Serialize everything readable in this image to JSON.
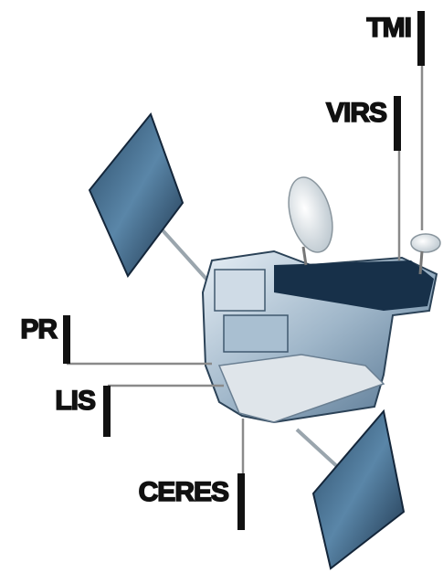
{
  "instruments": [
    {
      "label": "TMI"
    },
    {
      "label": "VIRS"
    },
    {
      "label": "PR"
    },
    {
      "label": "LIS"
    },
    {
      "label": "CERES"
    }
  ]
}
